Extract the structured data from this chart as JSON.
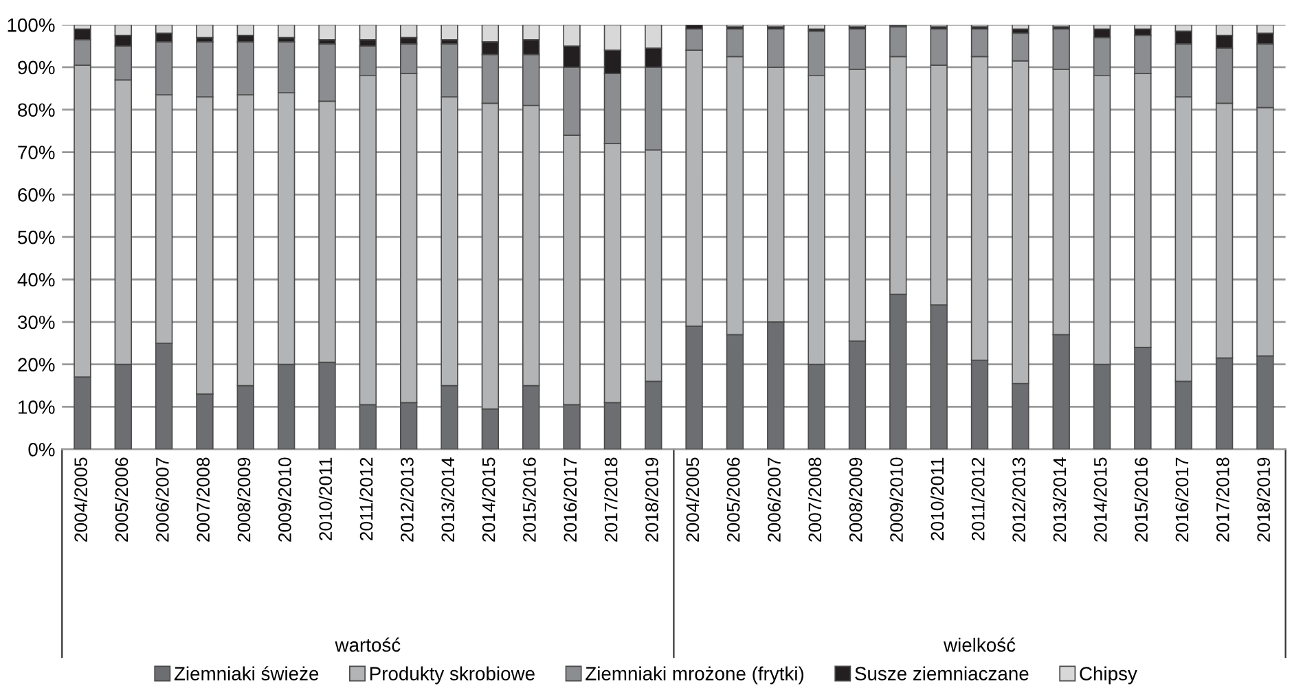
{
  "chart_data": {
    "type": "bar",
    "stacked": true,
    "categories": [
      "2004/2005",
      "2005/2006",
      "2006/2007",
      "2007/2008",
      "2008/2009",
      "2009/2010",
      "2010/2011",
      "2011/2012",
      "2012/2013",
      "2013/2014",
      "2014/2015",
      "2015/2016",
      "2016/2017",
      "2017/2018",
      "2018/2019",
      "2004/2005",
      "2005/2006",
      "2006/2007",
      "2007/2008",
      "2008/2009",
      "2009/2010",
      "2010/2011",
      "2011/2012",
      "2012/2013",
      "2013/2014",
      "2014/2015",
      "2015/2016",
      "2016/2017",
      "2017/2018",
      "2018/2019"
    ],
    "series": [
      {
        "name": "Ziemniaki świeże",
        "color": "#6d6e71",
        "values": [
          17,
          20,
          25,
          13,
          15,
          20,
          20.5,
          10.5,
          11,
          15,
          9.5,
          15,
          10.5,
          11,
          16,
          29,
          27,
          30,
          20,
          25.5,
          36.5,
          34,
          21,
          15.5,
          27,
          20,
          24,
          16,
          21.5,
          22
        ]
      },
      {
        "name": "Produkty skrobiowe",
        "color": "#b3b4b6",
        "values": [
          73.5,
          67,
          58.5,
          70,
          68.5,
          64,
          61.5,
          77.5,
          77.5,
          68,
          72,
          66,
          63.5,
          61,
          54.5,
          65,
          65.5,
          60,
          68,
          64,
          56,
          56.5,
          71.5,
          76,
          62.5,
          68,
          64.5,
          67,
          60,
          58.5
        ]
      },
      {
        "name": "Ziemniaki mrożone (frytki)",
        "color": "#8c8d90",
        "values": [
          6,
          8,
          12.5,
          13,
          12.5,
          12,
          13.5,
          7,
          7,
          12.5,
          11.5,
          12,
          16,
          16.5,
          19.5,
          5,
          6.5,
          9,
          10.5,
          9.5,
          7,
          8.5,
          6.5,
          6.5,
          9.5,
          9,
          9,
          12.5,
          13,
          15
        ]
      },
      {
        "name": "Susze ziemniaczane",
        "color": "#231f20",
        "values": [
          2.5,
          2.5,
          2,
          1,
          1.5,
          1,
          1,
          1.5,
          1.5,
          1,
          3,
          3.5,
          5,
          5.5,
          4.5,
          1,
          0.5,
          0.5,
          0.5,
          0.5,
          0.3,
          0.5,
          0.5,
          1,
          0.5,
          2,
          1.5,
          3,
          3,
          2.5
        ]
      },
      {
        "name": "Chipsy",
        "color": "#d8d8d8",
        "values": [
          1,
          2.5,
          2,
          3,
          2.5,
          3,
          3.5,
          3.5,
          3,
          3.5,
          4,
          3.5,
          5,
          6,
          5.5,
          0,
          0.5,
          0.5,
          1,
          0.5,
          0.2,
          0.5,
          0.5,
          1,
          0.5,
          1,
          1,
          1.5,
          2.5,
          2
        ]
      }
    ],
    "ylim": [
      0,
      100
    ],
    "yticks": [
      {
        "value": 0,
        "label": "0%"
      },
      {
        "value": 10,
        "label": "10%"
      },
      {
        "value": 20,
        "label": "20%"
      },
      {
        "value": 30,
        "label": "30%"
      },
      {
        "value": 40,
        "label": "40%"
      },
      {
        "value": 50,
        "label": "50%"
      },
      {
        "value": 60,
        "label": "60%"
      },
      {
        "value": 70,
        "label": "70%"
      },
      {
        "value": 80,
        "label": "80%"
      },
      {
        "value": 90,
        "label": "90%"
      },
      {
        "value": 100,
        "label": "100%"
      }
    ],
    "grid": "y",
    "legend": "bottom",
    "annotations": [
      "wartość",
      "wielkość"
    ]
  }
}
